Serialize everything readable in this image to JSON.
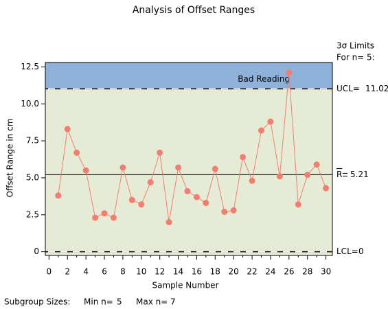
{
  "chart_data": {
    "type": "control",
    "title": "Analysis of Offset Ranges",
    "x_label": "Sample Number",
    "y_label": "Offset Range in cm",
    "x": [
      1,
      2,
      3,
      4,
      5,
      6,
      7,
      8,
      9,
      10,
      11,
      12,
      13,
      14,
      15,
      16,
      17,
      18,
      19,
      20,
      21,
      22,
      23,
      24,
      25,
      26,
      27,
      28,
      29,
      30
    ],
    "series": [
      {
        "name": "Range",
        "color": "#f07f72",
        "values": [
          3.8,
          8.3,
          6.7,
          5.5,
          2.3,
          2.6,
          2.3,
          5.7,
          3.5,
          3.2,
          4.7,
          6.7,
          2.0,
          5.7,
          4.1,
          3.7,
          3.3,
          5.6,
          2.7,
          2.8,
          6.4,
          4.8,
          8.2,
          8.8,
          5.1,
          12.1,
          3.2,
          5.2,
          5.9,
          4.3
        ]
      }
    ],
    "xlim": [
      -0.4,
      30.7
    ],
    "ylim": [
      -0.25,
      12.8
    ],
    "xticks": [
      0,
      2,
      4,
      6,
      8,
      10,
      12,
      14,
      16,
      18,
      20,
      22,
      24,
      26,
      28,
      30
    ],
    "yticks": [
      0,
      2.5,
      {
        "value": 5,
        "label": "5.0"
      },
      7.5,
      {
        "value": 10,
        "label": "10.0"
      },
      12.5
    ],
    "limits_header": [
      "3σ Limits",
      "For n= 5:"
    ],
    "ucl": {
      "label": "UCL=",
      "value": 11.02
    },
    "center": {
      "label": "R",
      "value": 5.21
    },
    "lcl": {
      "label": "LCL=",
      "value": 0
    },
    "upper_zone_color": "#8fb0d8",
    "inner_zone_color": "#e6ebd5",
    "annotation": "Bad Reading",
    "footnote": {
      "label": "Subgroup Sizes:",
      "min_label": "Min n=",
      "min_n": 5,
      "max_label": "Max n=",
      "max_n": 7
    }
  }
}
